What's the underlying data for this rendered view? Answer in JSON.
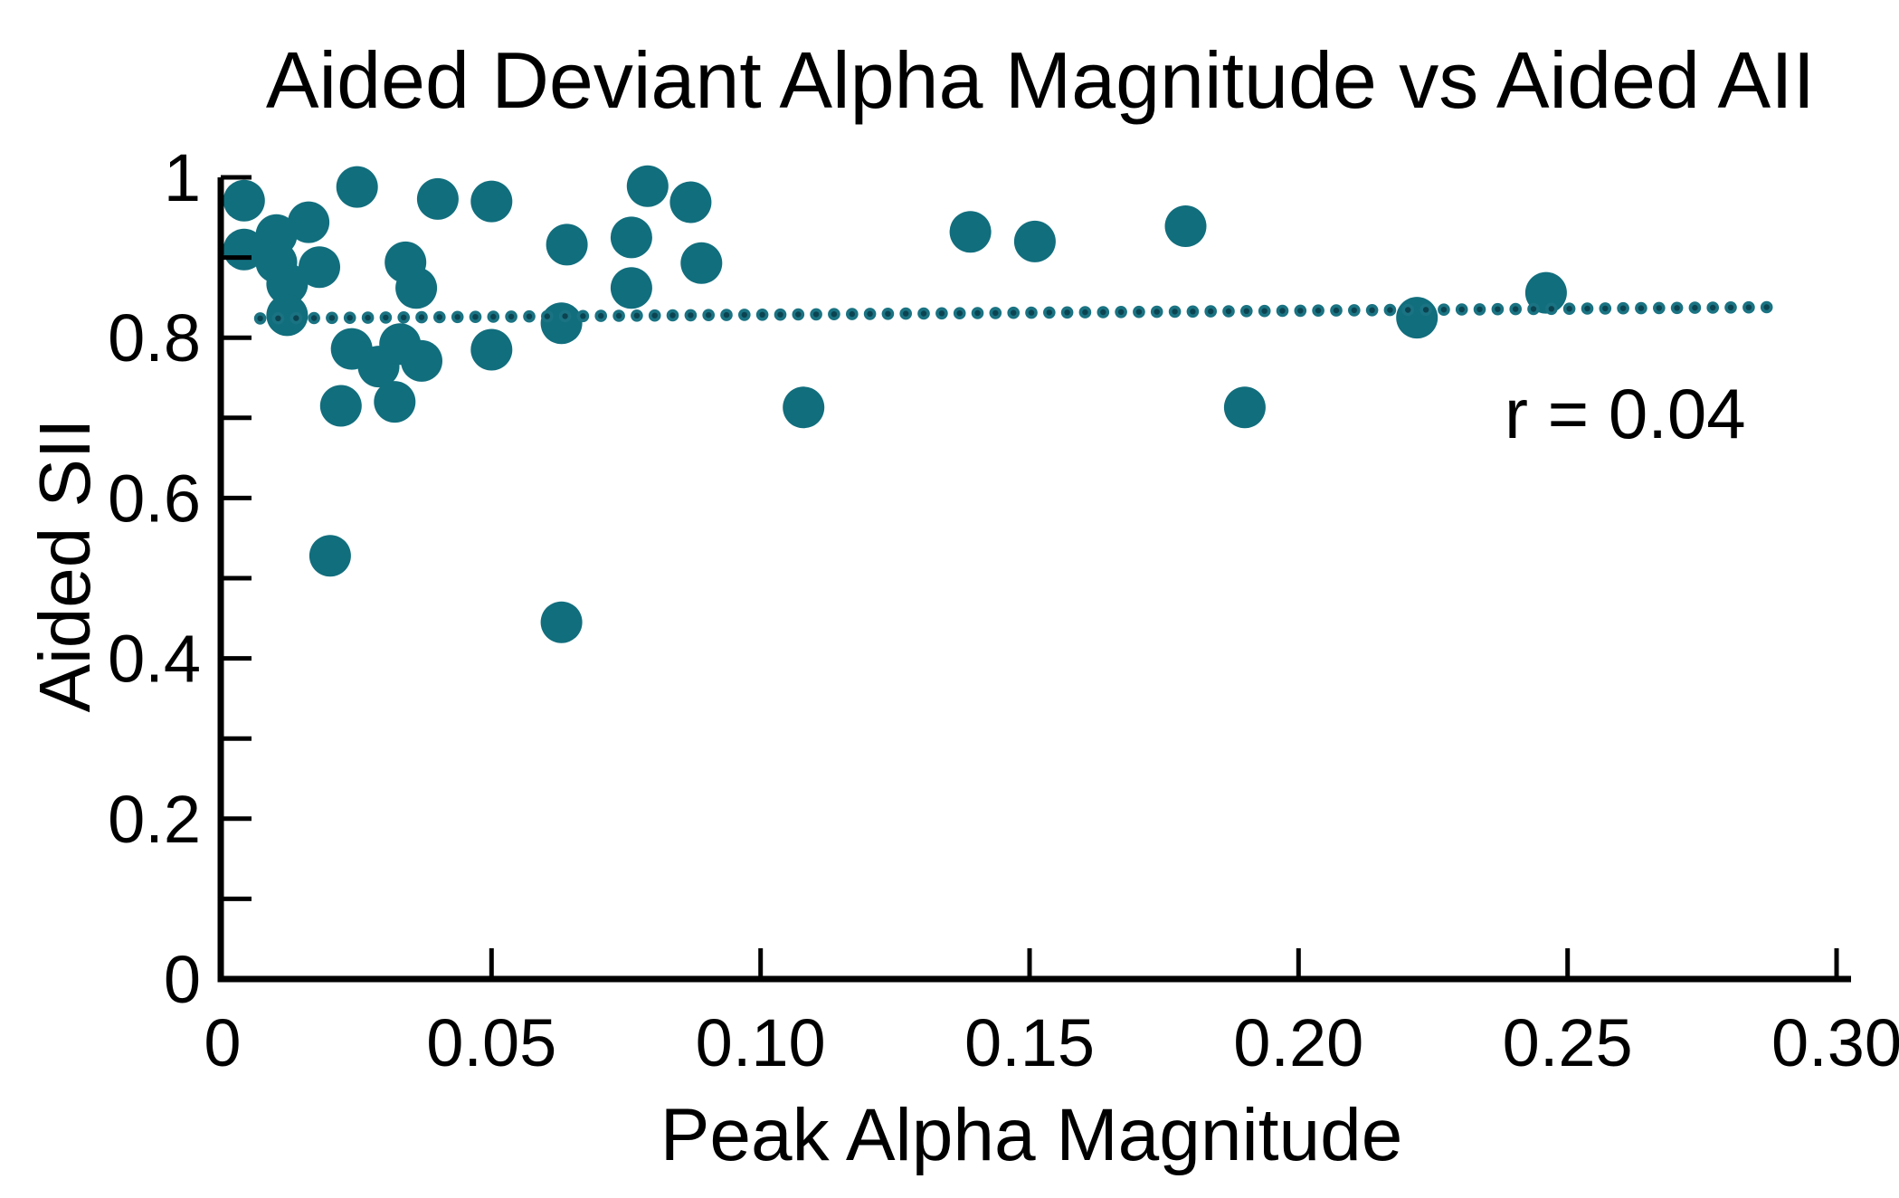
{
  "chart_data": {
    "type": "scatter",
    "title": "Aided Deviant Alpha Magnitude vs Aided AII",
    "xlabel": "Peak Alpha Magnitude",
    "ylabel": "Aided SII",
    "annotation": "r = 0.04",
    "r_value": 0.04,
    "xlim": [
      0,
      0.3
    ],
    "ylim": [
      0,
      1
    ],
    "grid": false,
    "x_ticks": [
      {
        "value": 0.0,
        "label": "0"
      },
      {
        "value": 0.05,
        "label": "0.05"
      },
      {
        "value": 0.1,
        "label": "0.10"
      },
      {
        "value": 0.15,
        "label": "0.15"
      },
      {
        "value": 0.2,
        "label": "0.20"
      },
      {
        "value": 0.25,
        "label": "0.25"
      },
      {
        "value": 0.3,
        "label": "0.30"
      }
    ],
    "y_ticks": [
      {
        "value": 0.0,
        "label": "0"
      },
      {
        "value": 0.1,
        "label": ""
      },
      {
        "value": 0.2,
        "label": "0.2"
      },
      {
        "value": 0.3,
        "label": ""
      },
      {
        "value": 0.4,
        "label": "0.4"
      },
      {
        "value": 0.5,
        "label": ""
      },
      {
        "value": 0.6,
        "label": "0.6"
      },
      {
        "value": 0.7,
        "label": ""
      },
      {
        "value": 0.8,
        "label": "0.8"
      },
      {
        "value": 0.9,
        "label": ""
      },
      {
        "value": 1.0,
        "label": "1"
      }
    ],
    "points": [
      {
        "x": 0.004,
        "y": 0.971
      },
      {
        "x": 0.025,
        "y": 0.988
      },
      {
        "x": 0.016,
        "y": 0.944
      },
      {
        "x": 0.01,
        "y": 0.928
      },
      {
        "x": 0.004,
        "y": 0.91
      },
      {
        "x": 0.01,
        "y": 0.894
      },
      {
        "x": 0.018,
        "y": 0.888
      },
      {
        "x": 0.012,
        "y": 0.867
      },
      {
        "x": 0.012,
        "y": 0.828
      },
      {
        "x": 0.02,
        "y": 0.528
      },
      {
        "x": 0.022,
        "y": 0.715
      },
      {
        "x": 0.034,
        "y": 0.894
      },
      {
        "x": 0.036,
        "y": 0.862
      },
      {
        "x": 0.04,
        "y": 0.973
      },
      {
        "x": 0.05,
        "y": 0.97
      },
      {
        "x": 0.024,
        "y": 0.786
      },
      {
        "x": 0.029,
        "y": 0.764
      },
      {
        "x": 0.033,
        "y": 0.792
      },
      {
        "x": 0.037,
        "y": 0.771
      },
      {
        "x": 0.05,
        "y": 0.785
      },
      {
        "x": 0.032,
        "y": 0.72
      },
      {
        "x": 0.063,
        "y": 0.445
      },
      {
        "x": 0.064,
        "y": 0.916
      },
      {
        "x": 0.063,
        "y": 0.818
      },
      {
        "x": 0.076,
        "y": 0.925
      },
      {
        "x": 0.076,
        "y": 0.862
      },
      {
        "x": 0.079,
        "y": 0.989
      },
      {
        "x": 0.087,
        "y": 0.969
      },
      {
        "x": 0.089,
        "y": 0.893
      },
      {
        "x": 0.108,
        "y": 0.713
      },
      {
        "x": 0.139,
        "y": 0.932
      },
      {
        "x": 0.151,
        "y": 0.92
      },
      {
        "x": 0.179,
        "y": 0.939
      },
      {
        "x": 0.19,
        "y": 0.713
      },
      {
        "x": 0.222,
        "y": 0.825
      },
      {
        "x": 0.246,
        "y": 0.856
      }
    ],
    "trend_line": {
      "style": "dotted",
      "x_start": 0.007,
      "x_end": 0.287,
      "y_start": 0.824,
      "y_end": 0.838
    },
    "colors": {
      "marker": "#116e7d",
      "trend_dot_outer": "#1a7382",
      "trend_dot_inner": "#0c4351",
      "axis": "#000000",
      "background": "#ffffff"
    }
  }
}
